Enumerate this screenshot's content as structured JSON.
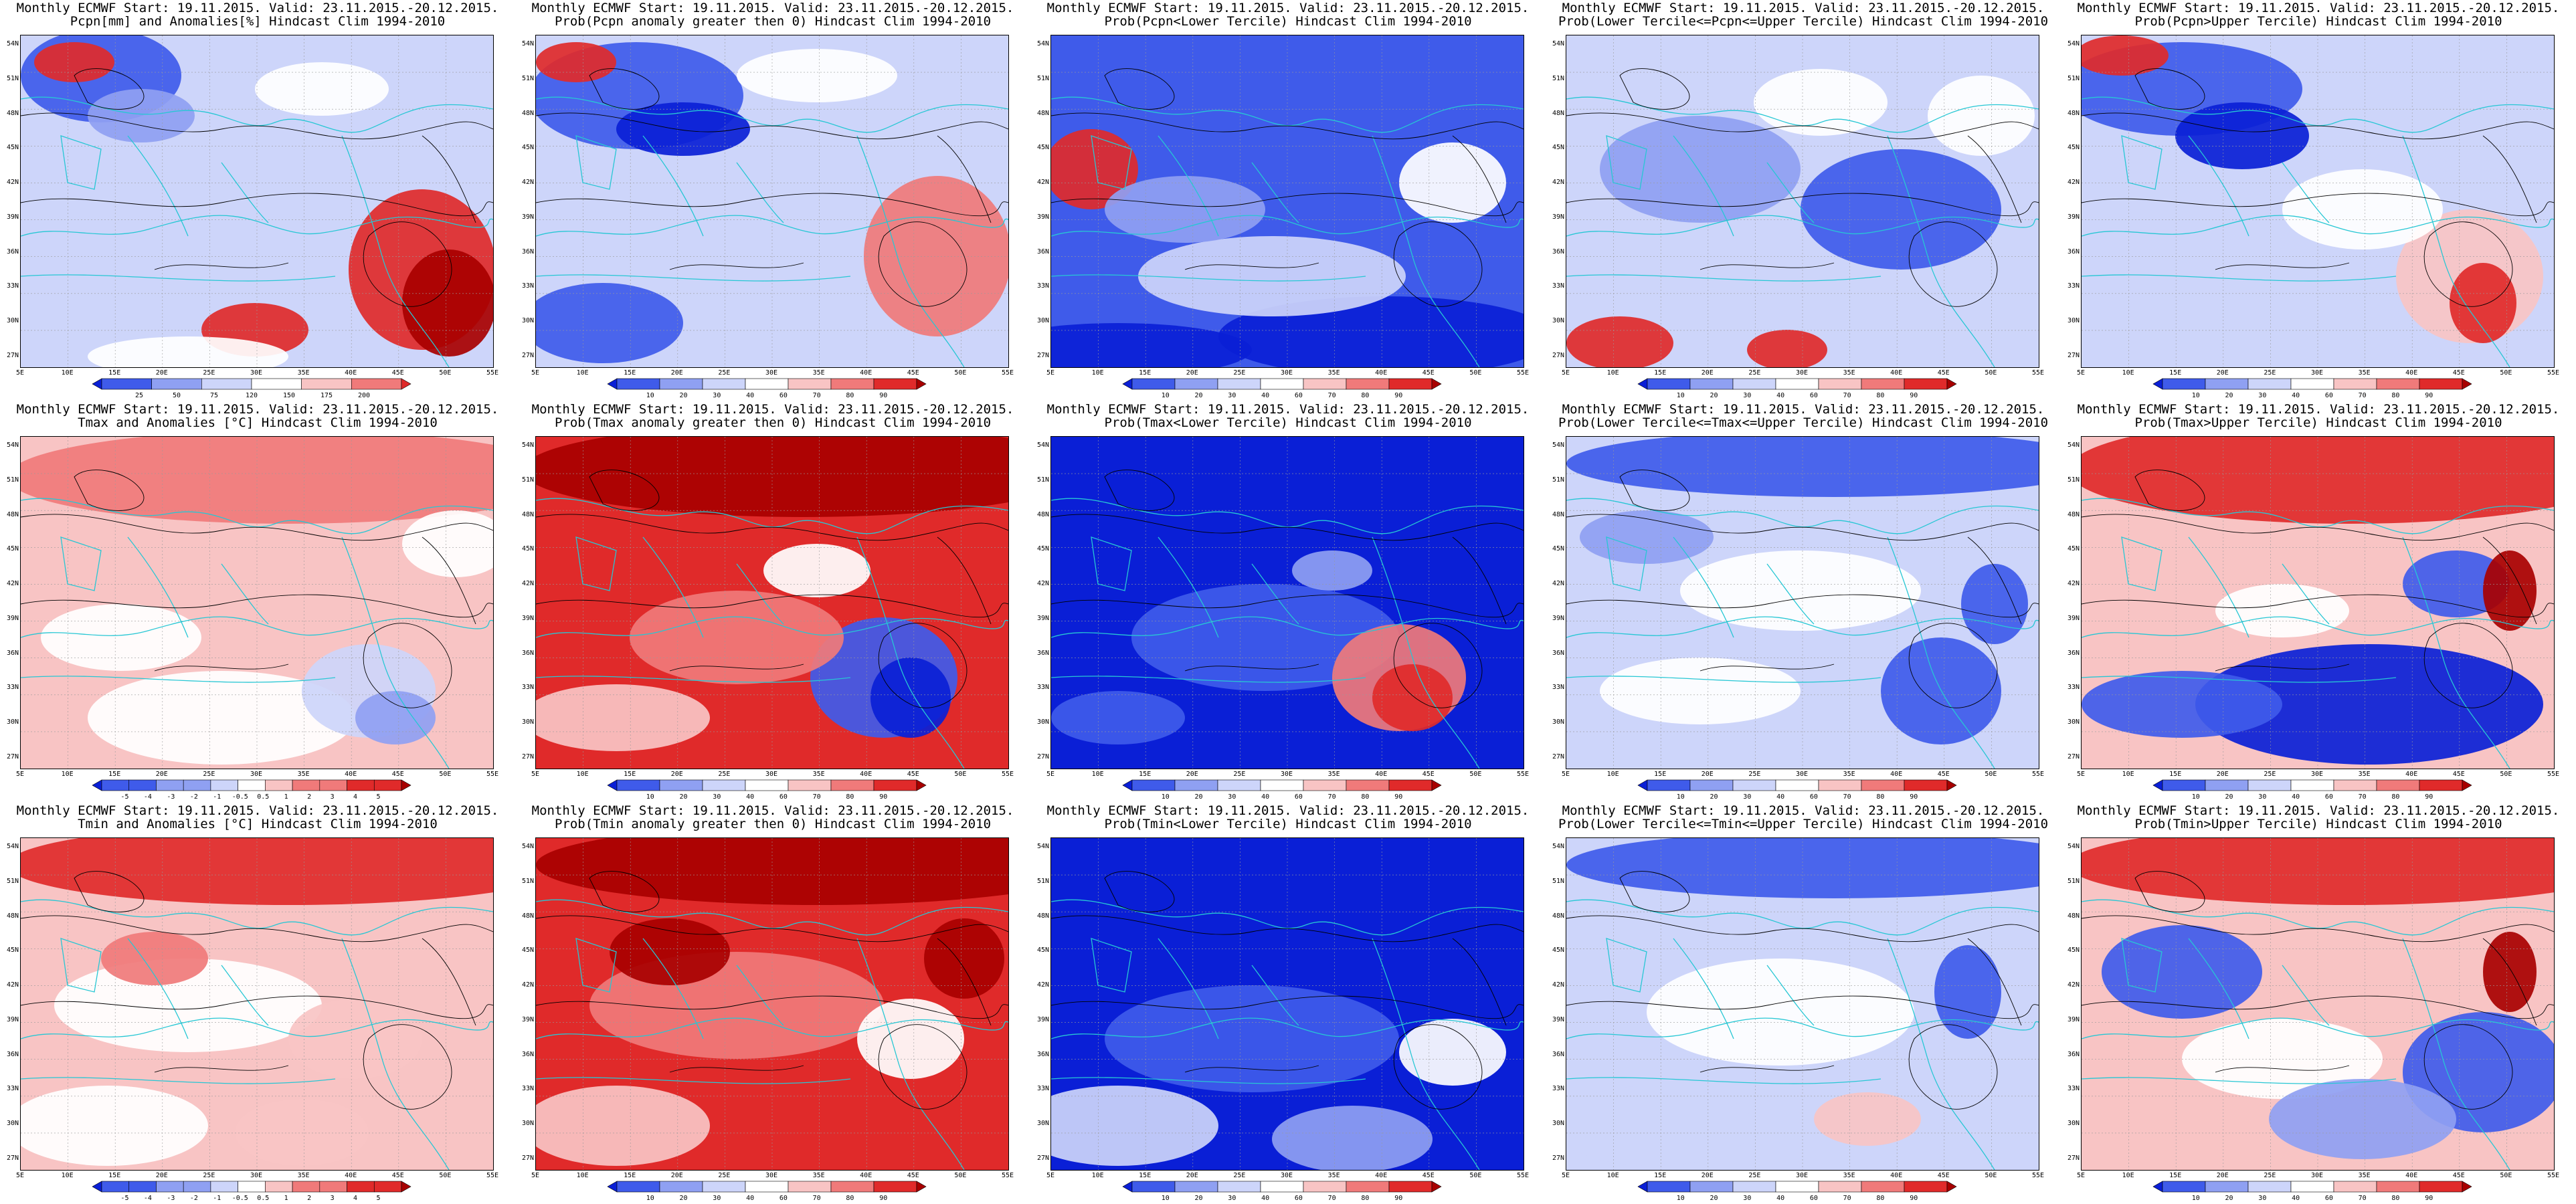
{
  "header_prefix": "Monthly ECMWF Start: 19.11.2015. Valid: 23.11.2015.-20.12.2015.",
  "lat_ticks": [
    "54N",
    "51N",
    "48N",
    "45N",
    "42N",
    "39N",
    "36N",
    "33N",
    "30N",
    "27N"
  ],
  "lon_ticks": [
    "5E",
    "10E",
    "15E",
    "20E",
    "25E",
    "30E",
    "35E",
    "40E",
    "45E",
    "50E",
    "55E"
  ],
  "scales": {
    "pcp_anom": [
      "25",
      "50",
      "75",
      "120",
      "150",
      "175",
      "200"
    ],
    "temp_anom": [
      "-5",
      "-4",
      "-3",
      "-2",
      "-1",
      "-0.5",
      "0.5",
      "1",
      "2",
      "3",
      "4",
      "5"
    ],
    "prob": [
      "10",
      "20",
      "30",
      "40",
      "60",
      "70",
      "80",
      "90"
    ]
  },
  "colors": {
    "deep_blue": "#0a1fd6",
    "blue": "#3f5bea",
    "mid_blue": "#8fa0f2",
    "light_blue": "#cdd5fa",
    "white": "#ffffff",
    "light_red": "#f8c4c4",
    "mid_red": "#f07a7a",
    "red": "#e02a2a",
    "dark_red": "#a80000",
    "coast": "#27c7d4",
    "contour": "#000000"
  },
  "rows": [
    {
      "panels": [
        {
          "title": "Pcpn[mm] and Anomalies[%] Hindcast Clim 1994-2010",
          "scale": "pcp_anom",
          "pattern": "pcp_anom"
        },
        {
          "title": "Prob(Pcpn anomaly greater then 0) Hindcast Clim 1994-2010",
          "scale": "prob",
          "pattern": "pcp_gt0"
        },
        {
          "title": "Prob(Pcpn<Lower Tercile) Hindcast Clim 1994-2010",
          "scale": "prob",
          "pattern": "pcp_low"
        },
        {
          "title": "Prob(Lower Tercile<=Pcpn<=Upper Tercile) Hindcast Clim 1994-2010",
          "scale": "prob",
          "pattern": "pcp_mid"
        },
        {
          "title": "Prob(Pcpn>Upper Tercile) Hindcast Clim 1994-2010",
          "scale": "prob",
          "pattern": "pcp_up"
        }
      ]
    },
    {
      "panels": [
        {
          "title": "Tmax and Anomalies [°C] Hindcast Clim 1994-2010",
          "scale": "temp_anom",
          "pattern": "tmax_anom"
        },
        {
          "title": "Prob(Tmax anomaly greater then 0) Hindcast Clim 1994-2010",
          "scale": "prob",
          "pattern": "tmax_gt0"
        },
        {
          "title": "Prob(Tmax<Lower Tercile) Hindcast Clim 1994-2010",
          "scale": "prob",
          "pattern": "tmax_low"
        },
        {
          "title": "Prob(Lower Tercile<=Tmax<=Upper Tercile) Hindcast Clim 1994-2010",
          "scale": "prob",
          "pattern": "tmax_mid"
        },
        {
          "title": "Prob(Tmax>Upper Tercile) Hindcast Clim 1994-2010",
          "scale": "prob",
          "pattern": "tmax_up"
        }
      ]
    },
    {
      "panels": [
        {
          "title": "Tmin and Anomalies [°C] Hindcast Clim 1994-2010",
          "scale": "temp_anom",
          "pattern": "tmin_anom"
        },
        {
          "title": "Prob(Tmin anomaly greater then 0) Hindcast Clim 1994-2010",
          "scale": "prob",
          "pattern": "tmin_gt0"
        },
        {
          "title": "Prob(Tmin<Lower Tercile) Hindcast Clim 1994-2010",
          "scale": "prob",
          "pattern": "tmin_low"
        },
        {
          "title": "Prob(Lower Tercile<=Tmin<=Upper Tercile) Hindcast Clim 1994-2010",
          "scale": "prob",
          "pattern": "tmin_mid"
        },
        {
          "title": "Prob(Tmin>Upper Tercile) Hindcast Clim 1994-2010",
          "scale": "prob",
          "pattern": "tmin_up"
        }
      ]
    }
  ]
}
